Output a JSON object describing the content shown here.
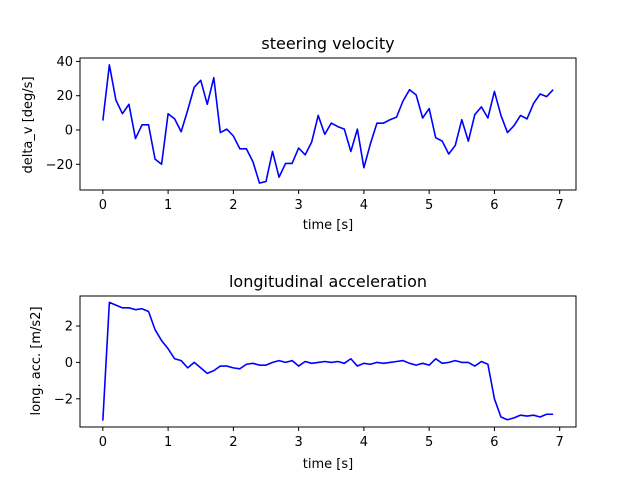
{
  "chart_data": [
    {
      "type": "line",
      "title": "steering velocity",
      "xlabel": "time [s]",
      "ylabel": "delta_v [deg/s]",
      "xlim": [
        -0.35,
        7.25
      ],
      "ylim": [
        -35,
        42
      ],
      "xticks": [
        0,
        1,
        2,
        3,
        4,
        5,
        6,
        7
      ],
      "yticks": [
        -20,
        0,
        20,
        40
      ],
      "grid": false,
      "series": [
        {
          "color": "#0000ff",
          "x": [
            0.0,
            0.1,
            0.2,
            0.3,
            0.4,
            0.5,
            0.6,
            0.7,
            0.8,
            0.9,
            1.0,
            1.1,
            1.2,
            1.3,
            1.4,
            1.5,
            1.6,
            1.7,
            1.8,
            1.9,
            2.0,
            2.1,
            2.2,
            2.3,
            2.4,
            2.5,
            2.6,
            2.7,
            2.8,
            2.9,
            3.0,
            3.1,
            3.2,
            3.3,
            3.4,
            3.5,
            3.6,
            3.7,
            3.8,
            3.9,
            4.0,
            4.1,
            4.2,
            4.3,
            4.4,
            4.5,
            4.6,
            4.7,
            4.8,
            4.9,
            5.0,
            5.1,
            5.2,
            5.3,
            5.4,
            5.5,
            5.6,
            5.7,
            5.8,
            5.9,
            6.0,
            6.1,
            6.2,
            6.3,
            6.4,
            6.5,
            6.6,
            6.7,
            6.8,
            6.9
          ],
          "y": [
            5.5,
            38,
            17.5,
            9.5,
            15,
            -5,
            3,
            3,
            -17,
            -20,
            9.5,
            6.5,
            -1,
            11.5,
            25,
            29,
            15,
            30.5,
            -1.5,
            0.5,
            -3.5,
            -11,
            -11,
            -18.5,
            -31,
            -30,
            -12.5,
            -27.5,
            -19.5,
            -19.5,
            -10.5,
            -14.5,
            -7,
            8.5,
            -2.5,
            4,
            2,
            0.5,
            -12.5,
            0.5,
            -22,
            -8,
            4,
            4,
            6,
            7.5,
            17,
            23.5,
            20.5,
            7,
            12.5,
            -4.5,
            -6.5,
            -14,
            -9,
            6,
            -6.5,
            9,
            13.5,
            7,
            22.5,
            8.5,
            -1.5,
            2.5,
            8.5,
            6.5,
            15.5,
            21,
            19.5,
            23.5
          ]
        }
      ]
    },
    {
      "type": "line",
      "title": "longitudinal acceleration",
      "xlabel": "time [s]",
      "ylabel": "long. acc. [m/s2]",
      "xlim": [
        -0.35,
        7.25
      ],
      "ylim": [
        -3.55,
        3.65
      ],
      "xticks": [
        0,
        1,
        2,
        3,
        4,
        5,
        6,
        7
      ],
      "yticks": [
        -2,
        0,
        2
      ],
      "grid": false,
      "series": [
        {
          "color": "#0000ff",
          "x": [
            0.0,
            0.1,
            0.2,
            0.3,
            0.4,
            0.5,
            0.6,
            0.7,
            0.8,
            0.9,
            1.0,
            1.1,
            1.2,
            1.3,
            1.4,
            1.5,
            1.6,
            1.7,
            1.8,
            1.9,
            2.0,
            2.1,
            2.2,
            2.3,
            2.4,
            2.5,
            2.6,
            2.7,
            2.8,
            2.9,
            3.0,
            3.1,
            3.2,
            3.3,
            3.4,
            3.5,
            3.6,
            3.7,
            3.8,
            3.9,
            4.0,
            4.1,
            4.2,
            4.3,
            4.4,
            4.5,
            4.6,
            4.7,
            4.8,
            4.9,
            5.0,
            5.1,
            5.2,
            5.3,
            5.4,
            5.5,
            5.6,
            5.7,
            5.8,
            5.9,
            6.0,
            6.1,
            6.2,
            6.3,
            6.4,
            6.5,
            6.6,
            6.7,
            6.8,
            6.9
          ],
          "y": [
            -3.2,
            3.3,
            3.15,
            3.0,
            3.0,
            2.9,
            2.95,
            2.8,
            1.8,
            1.2,
            0.75,
            0.2,
            0.1,
            -0.3,
            0.0,
            -0.3,
            -0.6,
            -0.45,
            -0.2,
            -0.2,
            -0.3,
            -0.35,
            -0.1,
            -0.05,
            -0.15,
            -0.15,
            0.0,
            0.1,
            0.0,
            0.1,
            -0.2,
            0.05,
            -0.05,
            0.0,
            0.05,
            0.0,
            0.05,
            -0.05,
            0.2,
            -0.2,
            -0.05,
            -0.1,
            0.0,
            -0.05,
            0.0,
            0.05,
            0.1,
            -0.05,
            -0.15,
            -0.05,
            -0.15,
            0.2,
            -0.05,
            0.0,
            0.1,
            0.0,
            0.0,
            -0.2,
            0.05,
            -0.1,
            -2.0,
            -3.0,
            -3.15,
            -3.05,
            -2.9,
            -2.95,
            -2.9,
            -3.0,
            -2.85,
            -2.85
          ]
        }
      ]
    }
  ]
}
